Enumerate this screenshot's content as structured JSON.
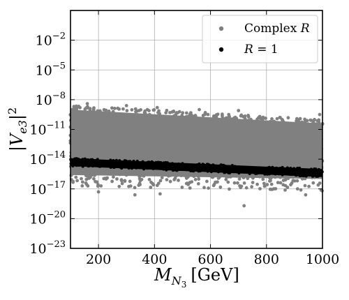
{
  "chart_data": {
    "type": "scatter",
    "x_label": {
      "main": "M",
      "sub": "N",
      "subsub": "3",
      "unit": "[GeV]"
    },
    "y_label": {
      "text": "|V",
      "sub": "e3",
      "tail": "|",
      "sup": "2"
    },
    "x_range": [
      100,
      1000
    ],
    "x_ticks": [
      200,
      400,
      600,
      800,
      1000
    ],
    "y_scale": "log",
    "y_range_exp": [
      -23,
      1
    ],
    "y_ticks": [
      {
        "base": "10",
        "exp": "−2",
        "power": -2
      },
      {
        "base": "10",
        "exp": "−5",
        "power": -5
      },
      {
        "base": "10",
        "exp": "−8",
        "power": -8
      },
      {
        "base": "10",
        "exp": "−11",
        "power": -11
      },
      {
        "base": "10",
        "exp": "−14",
        "power": -14
      },
      {
        "base": "10",
        "exp": "−17",
        "power": -17
      },
      {
        "base": "10",
        "exp": "−20",
        "power": -20
      },
      {
        "base": "10",
        "exp": "−23",
        "power": -23
      }
    ],
    "grid": true,
    "legend_position": "top-right",
    "series": [
      {
        "name": "Complex R",
        "legend_main": "Complex ",
        "legend_italic": "R",
        "color": "#808080",
        "band_log10_at_x_min": {
          "low": -15.6,
          "high": -9.0
        },
        "band_log10_at_x_max": {
          "low": -16.0,
          "high": -10.4
        },
        "outliers": [
          {
            "x": 160,
            "y_log10": -8.4
          },
          {
            "x": 300,
            "y_log10": -8.6
          },
          {
            "x": 410,
            "y_log10": -8.8
          },
          {
            "x": 560,
            "y_log10": -9.0
          },
          {
            "x": 700,
            "y_log10": -9.1
          },
          {
            "x": 990,
            "y_log10": -9.5
          },
          {
            "x": 200,
            "y_log10": -17.3
          },
          {
            "x": 330,
            "y_log10": -17.6
          },
          {
            "x": 420,
            "y_log10": -17.5
          },
          {
            "x": 720,
            "y_log10": -18.7
          },
          {
            "x": 940,
            "y_log10": -17.6
          }
        ]
      },
      {
        "name": "R = 1",
        "legend_italic": "R",
        "legend_rest": " = 1",
        "color": "#000000",
        "band_log10_at_x_min": {
          "low": -14.7,
          "high": -13.9
        },
        "band_log10_at_x_max": {
          "low": -15.8,
          "high": -15.0
        }
      }
    ]
  }
}
